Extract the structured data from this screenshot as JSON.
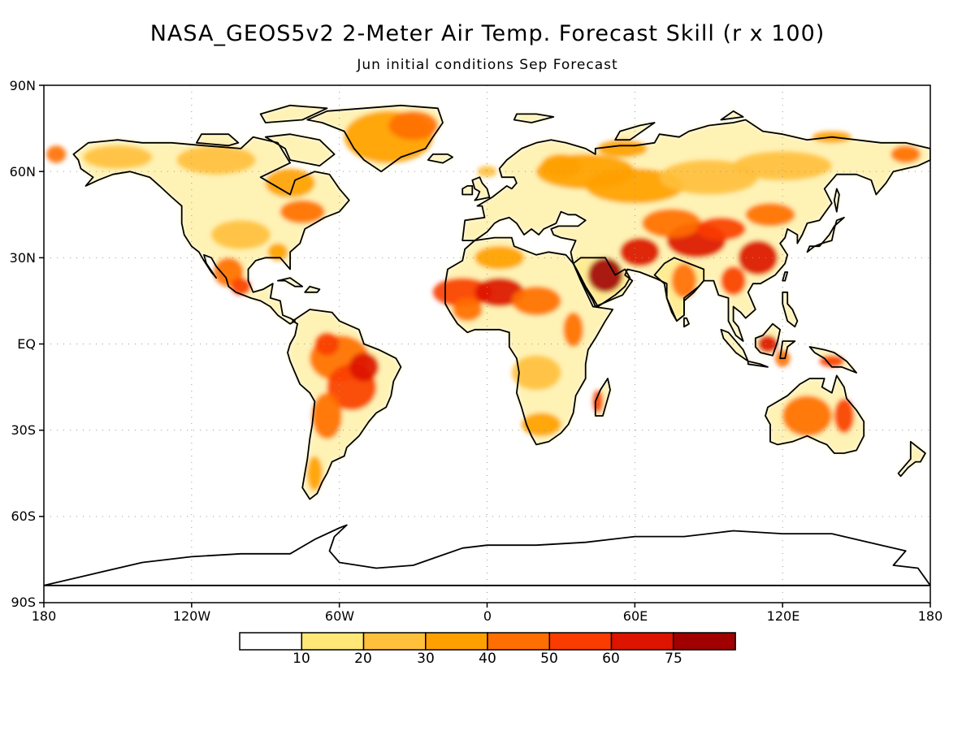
{
  "header": {
    "title": "NASA_GEOS5v2 2-Meter Air Temp. Forecast Skill (r x 100)",
    "subtitle": "Jun initial conditions  Sep Forecast"
  },
  "axes": {
    "lat_labels": [
      "90N",
      "60N",
      "30N",
      "EQ",
      "30S",
      "60S",
      "90S"
    ],
    "lon_labels": [
      "180",
      "120W",
      "60W",
      "0",
      "60E",
      "120E",
      "180"
    ]
  },
  "colorbar": {
    "levels": [
      "10",
      "20",
      "30",
      "40",
      "50",
      "60",
      "75"
    ],
    "colors": [
      "#ffffff",
      "#ffe878",
      "#ffc03c",
      "#ffa000",
      "#ff6e00",
      "#fa3c00",
      "#dc1400",
      "#a00000"
    ]
  },
  "chart_data": {
    "type": "heatmap",
    "title": "NASA_GEOS5v2 2-Meter Air Temp. Forecast Skill (r x 100)",
    "subtitle": "Jun initial conditions  Sep Forecast",
    "projection": "equirectangular",
    "lon_range": [
      -180,
      180
    ],
    "lat_range": [
      -90,
      90
    ],
    "grid": true,
    "legend": "bottom",
    "hotspots": [
      {
        "region": "Arabian Peninsula",
        "lon": 48,
        "lat": 24,
        "level": 75
      },
      {
        "region": "Iran/Afghanistan",
        "lon": 62,
        "lat": 32,
        "level": 60
      },
      {
        "region": "Tibet/West China",
        "lon": 85,
        "lat": 36,
        "level": 60
      },
      {
        "region": "East China",
        "lon": 110,
        "lat": 30,
        "level": 60
      },
      {
        "region": "West Africa/Sahel",
        "lon": 0,
        "lat": 17,
        "level": 50
      },
      {
        "region": "Amazon",
        "lon": -60,
        "lat": -5,
        "level": 50
      },
      {
        "region": "Central South America",
        "lon": -55,
        "lat": -18,
        "level": 50
      },
      {
        "region": "Borneo",
        "lon": 114,
        "lat": 0,
        "level": 50
      },
      {
        "region": "Australia interior",
        "lon": 128,
        "lat": -26,
        "level": 40
      },
      {
        "region": "Greenland",
        "lon": -40,
        "lat": 74,
        "level": 30
      },
      {
        "region": "Mexico",
        "lon": -102,
        "lat": 20,
        "level": 40
      },
      {
        "region": "Northern Russia",
        "lon": 60,
        "lat": 62,
        "level": 30
      }
    ]
  }
}
